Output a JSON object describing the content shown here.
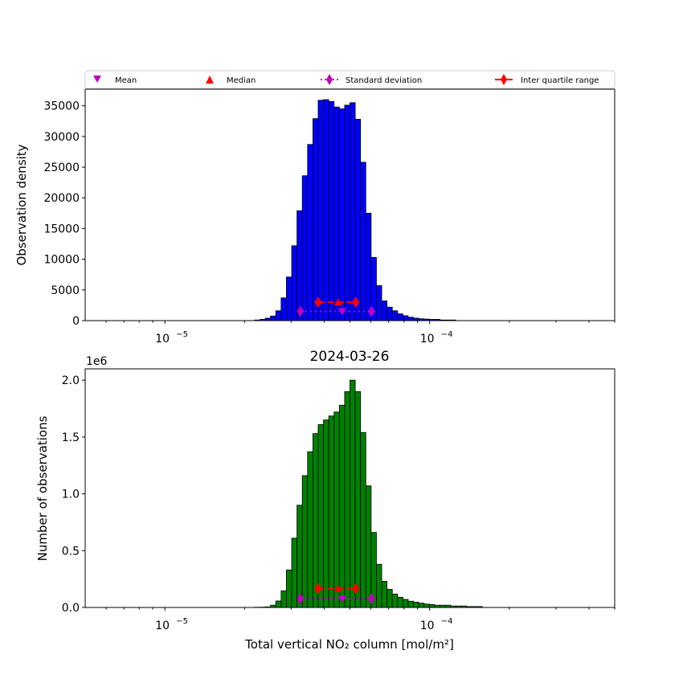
{
  "legend": {
    "mean": "Mean",
    "median": "Median",
    "std": "Standard deviation",
    "iqr": "Inter quartile range"
  },
  "colors": {
    "top_bars": "#0000ff",
    "bottom_bars": "#008000",
    "mean": "#bf00bf",
    "median": "#ff0000",
    "edge": "#000000"
  },
  "chart_data": [
    {
      "type": "bar",
      "subtype": "histogram",
      "title": "",
      "xlabel": "",
      "ylabel": "Observation density",
      "xscale": "log",
      "xlim": [
        5e-06,
        0.0005
      ],
      "ylim": [
        0,
        37700
      ],
      "xticks": [
        {
          "value": 1e-05,
          "base": "10",
          "exp": "−5"
        },
        {
          "value": 0.0001,
          "base": "10",
          "exp": "−4"
        }
      ],
      "yticks": [
        {
          "value": 0,
          "label": "0"
        },
        {
          "value": 5000,
          "label": "5000"
        },
        {
          "value": 10000,
          "label": "10000"
        },
        {
          "value": 15000,
          "label": "15000"
        },
        {
          "value": 20000,
          "label": "20000"
        },
        {
          "value": 25000,
          "label": "25000"
        },
        {
          "value": 30000,
          "label": "30000"
        },
        {
          "value": 35000,
          "label": "35000"
        }
      ],
      "bin_first_edge_log10": -4.661,
      "bin_width_log10": 0.02,
      "values": [
        100,
        200,
        400,
        750,
        1600,
        3700,
        7100,
        12200,
        17900,
        23600,
        28700,
        32900,
        35900,
        36000,
        35700,
        34800,
        34500,
        35100,
        35500,
        32800,
        25800,
        17500,
        10300,
        5700,
        3200,
        2200,
        1600,
        1100,
        800,
        550,
        400,
        300,
        250,
        200,
        200,
        100,
        100,
        100
      ],
      "stats": {
        "mean": {
          "x": 4.67e-05,
          "y": 1500
        },
        "median": {
          "x": 4.51e-05,
          "y": 3000
        },
        "std": {
          "x": [
            3.25e-05,
            6.03e-05
          ],
          "y": 1500
        },
        "iqr": {
          "x": [
            3.79e-05,
            5.26e-05
          ],
          "y": 3000
        }
      }
    },
    {
      "type": "bar",
      "subtype": "histogram",
      "title": "2024-03-26",
      "xlabel": "Total vertical NO₂ column [mol/m²]",
      "ylabel": "Number of observations",
      "multiplier": "1e6",
      "xscale": "log",
      "xlim": [
        5e-06,
        0.0005
      ],
      "ylim": [
        0,
        2.1
      ],
      "xticks": [
        {
          "value": 1e-05,
          "base": "10",
          "exp": "−5"
        },
        {
          "value": 0.0001,
          "base": "10",
          "exp": "−4"
        }
      ],
      "yticks": [
        {
          "value": 0,
          "label": "0.0"
        },
        {
          "value": 0.5,
          "label": "0.5"
        },
        {
          "value": 1.0,
          "label": "1.0"
        },
        {
          "value": 1.5,
          "label": "1.5"
        },
        {
          "value": 2.0,
          "label": "2.0"
        }
      ],
      "bin_first_edge_log10": -4.661,
      "bin_width_log10": 0.02,
      "values": [
        0.002,
        0.003,
        0.005,
        0.02,
        0.057,
        0.147,
        0.33,
        0.61,
        0.9,
        1.16,
        1.37,
        1.53,
        1.61,
        1.65,
        1.685,
        1.72,
        1.78,
        1.9,
        2.0,
        1.9,
        1.54,
        1.07,
        0.66,
        0.38,
        0.23,
        0.16,
        0.118,
        0.09,
        0.071,
        0.055,
        0.047,
        0.038,
        0.03,
        0.026,
        0.02,
        0.02,
        0.02,
        0.013,
        0.013,
        0.013,
        0.008,
        0.008,
        0.008
      ],
      "stats": {
        "mean": {
          "x": 4.67e-05,
          "y": 0.078
        },
        "median": {
          "x": 4.51e-05,
          "y": 0.165
        },
        "std": {
          "x": [
            3.25e-05,
            6.03e-05
          ],
          "y": 0.078
        },
        "iqr": {
          "x": [
            3.79e-05,
            5.26e-05
          ],
          "y": 0.165
        }
      }
    }
  ]
}
